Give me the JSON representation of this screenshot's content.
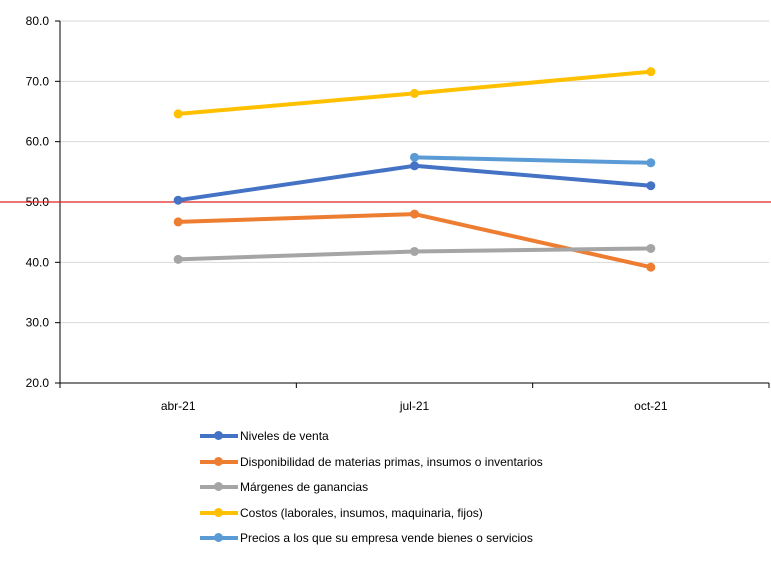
{
  "chart_data": {
    "type": "line",
    "title": "",
    "xlabel": "",
    "ylabel": "",
    "categories": [
      "abr-21",
      "jul-21",
      "oct-21"
    ],
    "ylim": [
      20,
      80
    ],
    "yticks": [
      "20.0",
      "30.0",
      "40.0",
      "50.0",
      "60.0",
      "70.0",
      "80.0"
    ],
    "reference_line": 50,
    "reference_color": "#e02020",
    "grid": true,
    "legend_position": "bottom",
    "series": [
      {
        "name": "Niveles de venta",
        "color": "#4472c4",
        "values": [
          50.3,
          56.0,
          52.7
        ]
      },
      {
        "name": "Disponibilidad de materias primas, insumos o inventarios",
        "color": "#ed7d31",
        "values": [
          46.7,
          48.0,
          39.2
        ]
      },
      {
        "name": "Márgenes de ganancias",
        "color": "#a5a5a5",
        "values": [
          40.5,
          41.8,
          42.3
        ]
      },
      {
        "name": "Costos (laborales, insumos, maquinaria, fijos)",
        "color": "#ffc000",
        "values": [
          64.6,
          68.0,
          71.6
        ]
      },
      {
        "name": "Precios a los que su empresa vende bienes o servicios",
        "color": "#5b9bd5",
        "values": [
          null,
          57.4,
          56.5
        ]
      }
    ]
  }
}
